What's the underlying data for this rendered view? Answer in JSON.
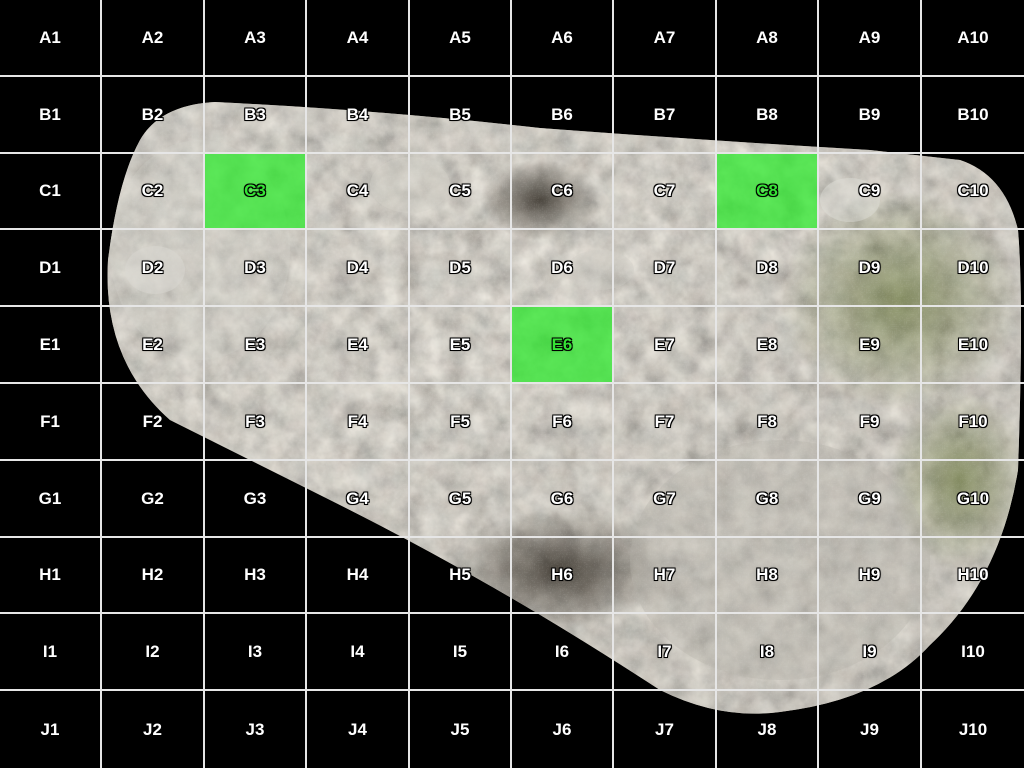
{
  "grid": {
    "rows": [
      "A",
      "B",
      "C",
      "D",
      "E",
      "F",
      "G",
      "H",
      "I",
      "J"
    ],
    "cols": [
      "1",
      "2",
      "3",
      "4",
      "5",
      "6",
      "7",
      "8",
      "9",
      "10"
    ],
    "selected_cells": [
      "C3",
      "C8",
      "E6"
    ]
  },
  "colors": {
    "background": "#000000",
    "grid_line": "#e6e6e6",
    "selected_fill": "#28eb28",
    "label_text": "#ffffff"
  }
}
